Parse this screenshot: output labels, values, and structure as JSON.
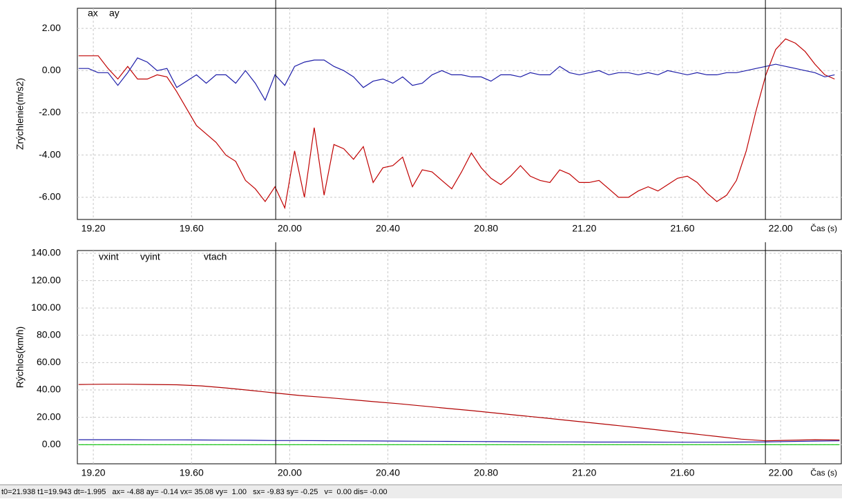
{
  "chart_data": [
    {
      "type": "line",
      "ylabel": "Zrýchlenie(m/s2)",
      "xlabel": "Čas (s)",
      "x": [
        19.14,
        19.18,
        19.22,
        19.26,
        19.3,
        19.34,
        19.38,
        19.42,
        19.46,
        19.5,
        19.54,
        19.58,
        19.62,
        19.66,
        19.7,
        19.74,
        19.78,
        19.82,
        19.86,
        19.9,
        19.94,
        19.98,
        20.02,
        20.06,
        20.1,
        20.14,
        20.18,
        20.22,
        20.26,
        20.3,
        20.34,
        20.38,
        20.42,
        20.46,
        20.5,
        20.54,
        20.58,
        20.62,
        20.66,
        20.7,
        20.74,
        20.78,
        20.82,
        20.86,
        20.9,
        20.94,
        20.98,
        21.02,
        21.06,
        21.1,
        21.14,
        21.18,
        21.22,
        21.26,
        21.3,
        21.34,
        21.38,
        21.42,
        21.46,
        21.5,
        21.54,
        21.58,
        21.62,
        21.66,
        21.7,
        21.74,
        21.78,
        21.82,
        21.86,
        21.9,
        21.94,
        21.98,
        22.02,
        22.06,
        22.1,
        22.14,
        22.18,
        22.22
      ],
      "series": [
        {
          "name": "ax",
          "color": "#c00000",
          "values": [
            0.7,
            0.7,
            0.7,
            0.1,
            -0.4,
            0.2,
            -0.4,
            -0.4,
            -0.2,
            -0.3,
            -1.0,
            -1.8,
            -2.6,
            -3.0,
            -3.4,
            -4.0,
            -4.3,
            -5.2,
            -5.6,
            -6.2,
            -5.5,
            -6.5,
            -3.8,
            -6.0,
            -2.7,
            -5.9,
            -3.5,
            -3.7,
            -4.2,
            -3.6,
            -5.3,
            -4.6,
            -4.5,
            -4.1,
            -5.5,
            -4.7,
            -4.8,
            -5.2,
            -5.6,
            -4.8,
            -3.9,
            -4.6,
            -5.1,
            -5.4,
            -5.0,
            -4.5,
            -5.0,
            -5.2,
            -5.3,
            -4.7,
            -4.9,
            -5.3,
            -5.3,
            -5.2,
            -5.6,
            -6.0,
            -6.0,
            -5.7,
            -5.5,
            -5.7,
            -5.4,
            -5.1,
            -5.0,
            -5.3,
            -5.8,
            -6.2,
            -5.9,
            -5.2,
            -3.8,
            -1.9,
            -0.2,
            1.0,
            1.5,
            1.3,
            0.9,
            0.3,
            -0.2,
            -0.4
          ]
        },
        {
          "name": "ay",
          "color": "#1c1ca8",
          "values": [
            0.1,
            0.1,
            -0.1,
            -0.1,
            -0.7,
            -0.1,
            0.6,
            0.4,
            0.0,
            0.1,
            -0.8,
            -0.5,
            -0.2,
            -0.6,
            -0.2,
            -0.2,
            -0.6,
            0.0,
            -0.6,
            -1.4,
            -0.2,
            -0.7,
            0.2,
            0.4,
            0.5,
            0.5,
            0.2,
            0.0,
            -0.3,
            -0.8,
            -0.5,
            -0.4,
            -0.6,
            -0.3,
            -0.7,
            -0.6,
            -0.2,
            0.0,
            -0.2,
            -0.2,
            -0.3,
            -0.3,
            -0.5,
            -0.2,
            -0.2,
            -0.3,
            -0.1,
            -0.2,
            -0.2,
            0.2,
            -0.1,
            -0.2,
            -0.1,
            0.0,
            -0.2,
            -0.1,
            -0.1,
            -0.2,
            -0.1,
            -0.2,
            0.0,
            -0.1,
            -0.2,
            -0.1,
            -0.2,
            -0.2,
            -0.1,
            -0.1,
            0.0,
            0.1,
            0.2,
            0.3,
            0.2,
            0.1,
            0.0,
            -0.1,
            -0.3,
            -0.2
          ]
        }
      ],
      "xlim": [
        19.135,
        22.25
      ],
      "ylim": [
        -7.05,
        2.95
      ],
      "xticks": [
        {
          "value": 19.2,
          "label": "19.20"
        },
        {
          "value": 19.6,
          "label": "19.60"
        },
        {
          "value": 20.0,
          "label": "20.00"
        },
        {
          "value": 20.4,
          "label": "20.40"
        },
        {
          "value": 20.8,
          "label": "20.80"
        },
        {
          "value": 21.2,
          "label": "21.20"
        },
        {
          "value": 21.6,
          "label": "21.60"
        },
        {
          "value": 22.0,
          "label": "22.00"
        }
      ],
      "yticks": [
        {
          "value": 2,
          "label": "2.00"
        },
        {
          "value": 0,
          "label": "0.00"
        },
        {
          "value": -2,
          "label": "-2.00"
        },
        {
          "value": -4,
          "label": "-4.00"
        },
        {
          "value": -6,
          "label": "-6.00"
        }
      ],
      "cursor_x": [
        19.943,
        21.938
      ],
      "grid": true
    },
    {
      "type": "line",
      "ylabel": "Rýchlos(km/h)",
      "xlabel": "Čas (s)",
      "x": [
        19.14,
        19.24,
        19.34,
        19.44,
        19.54,
        19.64,
        19.74,
        19.84,
        19.94,
        20.04,
        20.14,
        20.24,
        20.34,
        20.44,
        20.54,
        20.64,
        20.74,
        20.84,
        20.94,
        21.04,
        21.14,
        21.24,
        21.34,
        21.44,
        21.54,
        21.64,
        21.74,
        21.84,
        21.94,
        22.04,
        22.14,
        22.24
      ],
      "series": [
        {
          "name": "vxint",
          "color": "#b00000",
          "values": [
            44,
            44.2,
            44.2,
            44,
            43.8,
            43,
            41.5,
            39.7,
            37.8,
            36,
            34.6,
            33.1,
            31.5,
            30,
            28.3,
            26.6,
            24.9,
            23.1,
            21.3,
            19.5,
            17.6,
            15.8,
            13.9,
            12,
            10,
            8,
            6,
            4,
            2.8,
            3.2,
            3.6,
            3.4
          ]
        },
        {
          "name": "vyint",
          "color": "#1c1ca8",
          "values": [
            3.6,
            3.6,
            3.6,
            3.5,
            3.5,
            3.4,
            3.3,
            3.2,
            3.0,
            3.0,
            2.9,
            2.8,
            2.7,
            2.6,
            2.5,
            2.4,
            2.3,
            2.2,
            2.1,
            2.0,
            2.0,
            1.9,
            1.9,
            1.9,
            1.8,
            1.8,
            1.8,
            1.9,
            2.0,
            2.3,
            2.6,
            2.8
          ]
        },
        {
          "name": "vtach",
          "color": "#00c000",
          "values": [
            0,
            0,
            0,
            0,
            0,
            0,
            0,
            0,
            0,
            0,
            0,
            0,
            0,
            0,
            0,
            0,
            0,
            0,
            0,
            0,
            0,
            0,
            0,
            0,
            0,
            0,
            0,
            0,
            0,
            0,
            0,
            0
          ]
        }
      ],
      "xlim": [
        19.135,
        22.25
      ],
      "ylim": [
        -14,
        142
      ],
      "xticks": [
        {
          "value": 19.2,
          "label": "19.20"
        },
        {
          "value": 19.6,
          "label": "19.60"
        },
        {
          "value": 20.0,
          "label": "20.00"
        },
        {
          "value": 20.4,
          "label": "20.40"
        },
        {
          "value": 20.8,
          "label": "20.80"
        },
        {
          "value": 21.2,
          "label": "21.20"
        },
        {
          "value": 21.6,
          "label": "21.60"
        },
        {
          "value": 22.0,
          "label": "22.00"
        }
      ],
      "yticks": [
        {
          "value": 140,
          "label": "140.00"
        },
        {
          "value": 120,
          "label": "120.00"
        },
        {
          "value": 100,
          "label": "100.00"
        },
        {
          "value": 80,
          "label": "80.00"
        },
        {
          "value": 60,
          "label": "60.00"
        },
        {
          "value": 40,
          "label": "40.00"
        },
        {
          "value": 20,
          "label": "20.00"
        },
        {
          "value": 0,
          "label": "0.00"
        }
      ],
      "cursor_x": [
        19.943,
        21.938
      ],
      "grid": true
    }
  ],
  "status_bar": "t0=21.938 t1=19.943 dt=-1.995   ax= -4.88 ay= -0.14 vx= 35.08 vy=  1.00   sx= -9.83 sy= -0.25   v=  0.00 dis= -0.00"
}
